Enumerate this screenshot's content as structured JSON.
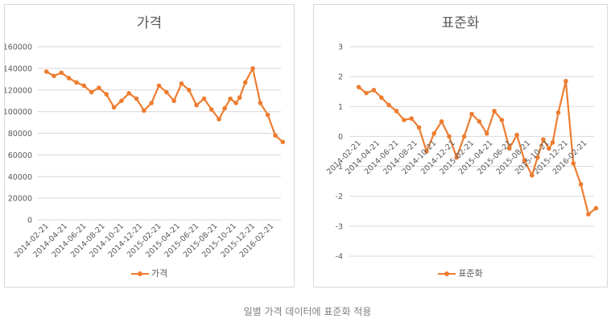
{
  "caption": "일별 가격 데이터에 표준화 적용",
  "series_color": "#ED7D31",
  "chart_data": [
    {
      "type": "line",
      "title": "가격",
      "legend": "가격",
      "xlabel": "",
      "ylabel": "",
      "ylim": [
        0,
        160000
      ],
      "yticks": [
        "0",
        "20000",
        "40000",
        "60000",
        "80000",
        "100000",
        "120000",
        "140000",
        "160000"
      ],
      "xticks": [
        "2014-02-21",
        "2014-04-21",
        "2014-06-21",
        "2014-08-21",
        "2014-10-21",
        "2014-12-21",
        "2015-02-21",
        "2015-04-21",
        "2015-06-21",
        "2015-08-21",
        "2015-10-21",
        "2015-12-21",
        "2016-02-21"
      ],
      "series": [
        {
          "name": "가격",
          "x": [
            0,
            0.4,
            0.8,
            1.2,
            1.6,
            2.0,
            2.4,
            2.8,
            3.2,
            3.6,
            4.0,
            4.4,
            4.8,
            5.2,
            5.6,
            6.0,
            6.4,
            6.8,
            7.2,
            7.6,
            8.0,
            8.4,
            8.8,
            9.2,
            9.5,
            9.8,
            10.1,
            10.3,
            10.6,
            11.0,
            11.4,
            11.8,
            12.2,
            12.6
          ],
          "values": [
            137000,
            133000,
            136000,
            131000,
            127000,
            124000,
            118000,
            122000,
            116000,
            104000,
            110000,
            117000,
            112000,
            101000,
            108000,
            124000,
            118000,
            110000,
            126000,
            120000,
            106000,
            112000,
            102000,
            93000,
            103000,
            112000,
            108000,
            113000,
            127000,
            140000,
            108000,
            97000,
            78000,
            72000
          ]
        }
      ]
    },
    {
      "type": "line",
      "title": "표준화",
      "legend": "표준화",
      "xlabel": "",
      "ylabel": "",
      "ylim": [
        -4,
        3
      ],
      "yticks": [
        "-4",
        "-3",
        "-2",
        "-1",
        "0",
        "1",
        "2",
        "3"
      ],
      "xticks": [
        "2014-02-21",
        "2014-04-21",
        "2014-06-21",
        "2014-08-21",
        "2014-10-21",
        "2014-12-21",
        "2015-02-21",
        "2015-04-21",
        "2015-06-21",
        "2015-08-21",
        "2015-10-21",
        "2015-12-21",
        "2016-02-21"
      ],
      "series": [
        {
          "name": "표준화",
          "x": [
            0,
            0.4,
            0.8,
            1.2,
            1.6,
            2.0,
            2.4,
            2.8,
            3.2,
            3.6,
            4.0,
            4.4,
            4.8,
            5.2,
            5.6,
            6.0,
            6.4,
            6.8,
            7.2,
            7.6,
            8.0,
            8.4,
            8.8,
            9.2,
            9.5,
            9.8,
            10.1,
            10.3,
            10.6,
            11.0,
            11.4,
            11.8,
            12.2,
            12.6
          ],
          "values": [
            1.65,
            1.45,
            1.55,
            1.3,
            1.05,
            0.85,
            0.55,
            0.6,
            0.3,
            -0.5,
            0.1,
            0.5,
            0.0,
            -0.7,
            0.0,
            0.75,
            0.5,
            0.1,
            0.85,
            0.55,
            -0.4,
            0.05,
            -0.8,
            -1.3,
            -0.7,
            -0.1,
            -0.4,
            -0.2,
            0.8,
            1.85,
            -0.9,
            -1.6,
            -2.6,
            -2.4
          ]
        }
      ]
    }
  ]
}
